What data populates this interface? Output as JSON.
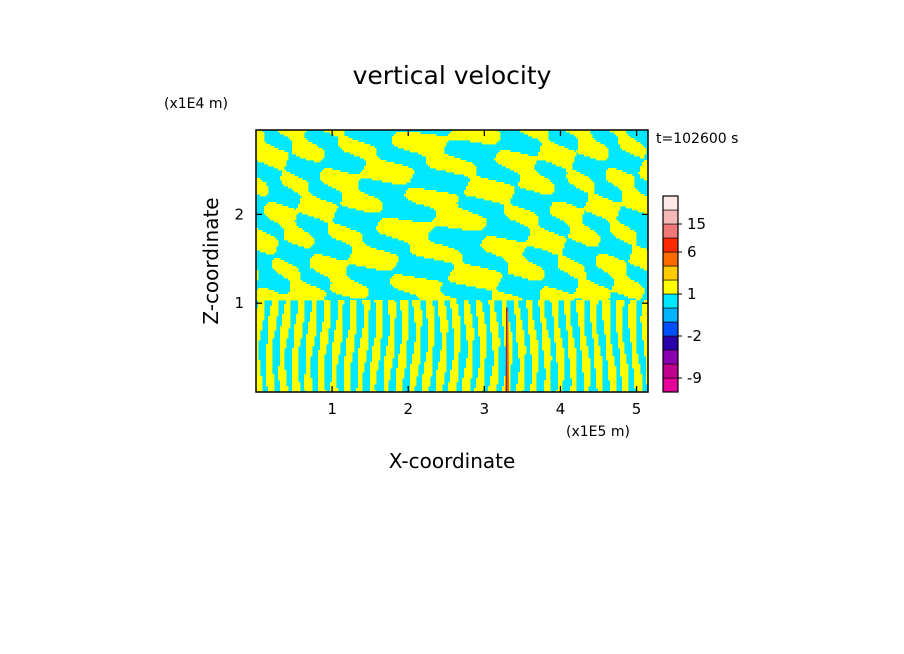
{
  "chart_data": {
    "type": "heatmap",
    "title": "vertical velocity",
    "xlabel": "X-coordinate",
    "ylabel": "Z-coordinate",
    "x_unit": "(x1E5 m)",
    "y_unit": "(x1E4 m)",
    "time_label": "t=102600 s",
    "xlim": [
      0,
      5.15
    ],
    "ylim": [
      0,
      2.95
    ],
    "x_ticks": [
      1,
      2,
      3,
      4,
      5
    ],
    "x_tick_labels": [
      "1",
      "2",
      "3",
      "4",
      "5"
    ],
    "y_ticks": [
      1,
      2
    ],
    "y_tick_labels": [
      "1",
      "2"
    ],
    "colorbar": {
      "levels": [
        -12,
        -9,
        -6,
        -4,
        -2,
        -1,
        0,
        1,
        2,
        4,
        6,
        10,
        15,
        20,
        25
      ],
      "colors": [
        "#e6009a",
        "#c0008e",
        "#8a00b0",
        "#2a00a8",
        "#0050ff",
        "#00b4ff",
        "#00e8ff",
        "#ffff00",
        "#ffcc00",
        "#ff6a00",
        "#ff2a00",
        "#f07878",
        "#f5b8b8",
        "#fde8e8"
      ],
      "tick_labels": [
        "-9",
        "-2",
        "1",
        "6",
        "15"
      ],
      "tick_values": [
        -9,
        -2,
        1,
        6,
        15
      ]
    },
    "field_description_colors": {
      "positive": "#ffff00",
      "negative": "#00e8ff",
      "strong_positive": "#ff2a00",
      "strong_negative": "#2a00a8"
    }
  }
}
